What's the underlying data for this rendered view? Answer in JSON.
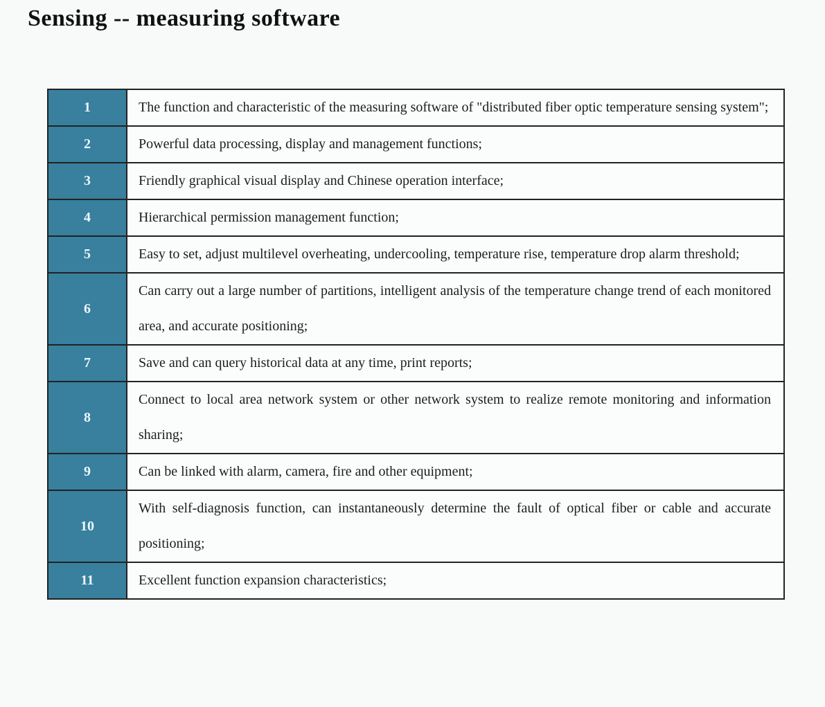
{
  "page": {
    "title": "Sensing -- measuring software"
  },
  "colors": {
    "accent": "#38809e",
    "number_text": "#edf7fa",
    "border": "#222222",
    "body_text": "#1d1d1d",
    "page_background": "#f8f9f9",
    "cell_background": "#fbfcfc"
  },
  "table": {
    "rows": [
      {
        "num": "1",
        "text": "The function and characteristic of the measuring software of \"distributed fiber optic temperature sensing system\";"
      },
      {
        "num": "2",
        "text": "Powerful data processing, display and management functions;"
      },
      {
        "num": "3",
        "text": "Friendly graphical visual display and Chinese operation interface;"
      },
      {
        "num": "4",
        "text": "Hierarchical permission management function;"
      },
      {
        "num": "5",
        "text": "Easy to set, adjust multilevel overheating, undercooling, temperature rise, temperature drop alarm threshold;"
      },
      {
        "num": "6",
        "text": "Can carry out a large number of partitions, intelligent analysis of the temperature change trend of each monitored area, and accurate positioning;"
      },
      {
        "num": "7",
        "text": "Save and can query historical data at any time, print reports;"
      },
      {
        "num": "8",
        "text": "Connect to local area network system or other network system to realize remote monitoring and information sharing;"
      },
      {
        "num": "9",
        "text": "Can be linked with alarm, camera, fire and other equipment;"
      },
      {
        "num": "10",
        "text": "With self-diagnosis function, can instantaneously determine the fault of optical fiber or cable and accurate positioning;"
      },
      {
        "num": "11",
        "text": "Excellent function expansion characteristics;"
      }
    ]
  }
}
